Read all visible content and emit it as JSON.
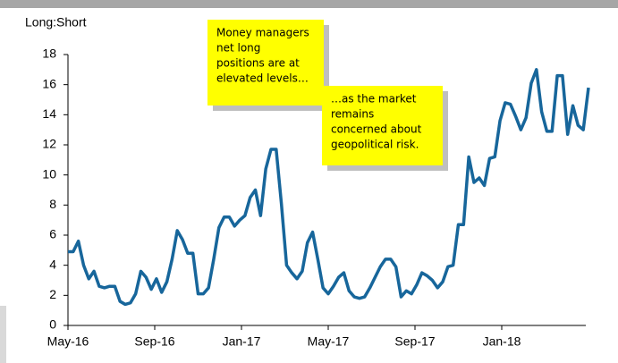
{
  "chart_data": {
    "type": "line",
    "ylabel": "Long:Short",
    "annotations": [
      {
        "lines": [
          "Money managers",
          "net long",
          "positions are at",
          "elevated levels…"
        ]
      },
      {
        "lines": [
          "…as the market",
          "remains",
          "concerned about",
          "geopolitical risk."
        ]
      }
    ],
    "x": [
      0,
      0.24,
      0.48,
      0.72,
      0.96,
      1.2,
      1.44,
      1.68,
      1.92,
      2.16,
      2.4,
      2.64,
      2.88,
      3.12,
      3.36,
      3.6,
      3.84,
      4.08,
      4.32,
      4.56,
      4.8,
      5.04,
      5.28,
      5.52,
      5.76,
      6,
      6.24,
      6.48,
      6.72,
      6.96,
      7.2,
      7.44,
      7.68,
      7.92,
      8.16,
      8.4,
      8.64,
      8.88,
      9.12,
      9.36,
      9.6,
      9.84,
      10.08,
      10.32,
      10.56,
      10.8,
      11.04,
      11.28,
      11.52,
      11.76,
      12,
      12.24,
      12.48,
      12.72,
      12.96,
      13.2,
      13.44,
      13.68,
      13.92,
      14.16,
      14.4,
      14.64,
      14.88,
      15.12,
      15.36,
      15.6,
      15.84,
      16.08,
      16.32,
      16.56,
      16.8,
      17.04,
      17.28,
      17.52,
      17.76,
      18,
      18.24,
      18.48,
      18.72,
      18.96,
      19.2,
      19.44,
      19.68,
      19.92,
      20.16,
      20.4,
      20.64,
      20.88,
      21.12,
      21.36,
      21.6,
      21.84,
      22.08,
      22.32,
      22.56,
      22.8,
      23.04,
      23.28,
      23.52,
      23.76,
      24
    ],
    "series": [
      {
        "color": "#17669b",
        "values": [
          4.9,
          4.9,
          5.6,
          4.0,
          3.1,
          3.6,
          2.6,
          2.5,
          2.6,
          2.6,
          1.6,
          1.4,
          1.5,
          2.1,
          3.6,
          3.2,
          2.4,
          3.1,
          2.2,
          2.9,
          4.4,
          6.3,
          5.7,
          4.8,
          4.8,
          2.1,
          2.1,
          2.5,
          4.4,
          6.5,
          7.2,
          7.2,
          6.6,
          7.0,
          7.3,
          8.5,
          9.0,
          7.3,
          10.4,
          11.7,
          11.7,
          8.1,
          4.0,
          3.5,
          3.1,
          3.6,
          5.5,
          6.2,
          4.4,
          2.5,
          2.1,
          2.6,
          3.2,
          3.5,
          2.3,
          1.9,
          1.8,
          1.9,
          2.5,
          3.2,
          3.9,
          4.4,
          4.4,
          3.9,
          1.9,
          2.3,
          2.1,
          2.7,
          3.5,
          3.3,
          3.0,
          2.5,
          2.9,
          3.9,
          4.0,
          6.7,
          6.7,
          11.2,
          9.5,
          9.8,
          9.3,
          11.1,
          11.2,
          13.6,
          14.8,
          14.7,
          13.9,
          13.0,
          13.8,
          16.1,
          17.0,
          14.2,
          12.9,
          12.9,
          16.6,
          16.6,
          12.7,
          14.6,
          13.3,
          13.0,
          15.8
        ]
      }
    ],
    "xlim": [
      0,
      24
    ],
    "xticks": [
      {
        "value": 0,
        "label": "May-16"
      },
      {
        "value": 4,
        "label": "Sep-16"
      },
      {
        "value": 8,
        "label": "Jan-17"
      },
      {
        "value": 12,
        "label": "May-17"
      },
      {
        "value": 16,
        "label": "Sep-17"
      },
      {
        "value": 20,
        "label": "Jan-18"
      }
    ],
    "ylim": [
      0,
      18
    ],
    "yticks": [
      0,
      2,
      4,
      6,
      8,
      10,
      12,
      14,
      16,
      18
    ]
  }
}
